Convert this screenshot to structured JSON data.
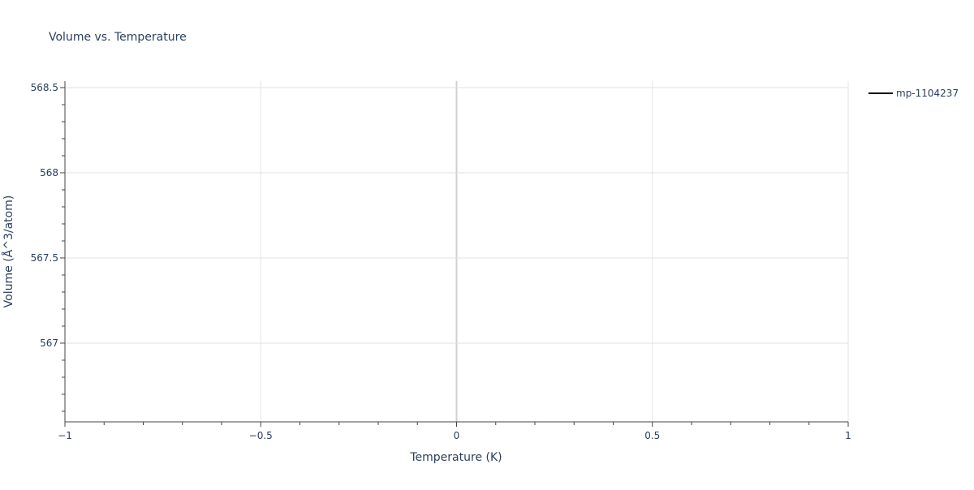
{
  "chart_data": {
    "type": "line",
    "title": "Volume vs. Temperature",
    "xlabel": "Temperature (K)",
    "ylabel": "Volume (Å^3/atom)",
    "xlim": [
      -1,
      1
    ],
    "ylim": [
      566.538,
      568.538
    ],
    "x_ticks": [
      -1,
      -0.5,
      0,
      0.5,
      1
    ],
    "x_tick_labels": [
      "−1",
      "−0.5",
      "0",
      "0.5",
      "1"
    ],
    "y_ticks": [
      567,
      567.5,
      568,
      568.5
    ],
    "y_tick_labels": [
      "567",
      "567.5",
      "568",
      "568.5"
    ],
    "grid": true,
    "legend_placement": "top-right",
    "series": [
      {
        "name": "mp-1104237",
        "color": "#000000",
        "x": [
          0
        ],
        "y": [
          567.538
        ]
      }
    ]
  }
}
